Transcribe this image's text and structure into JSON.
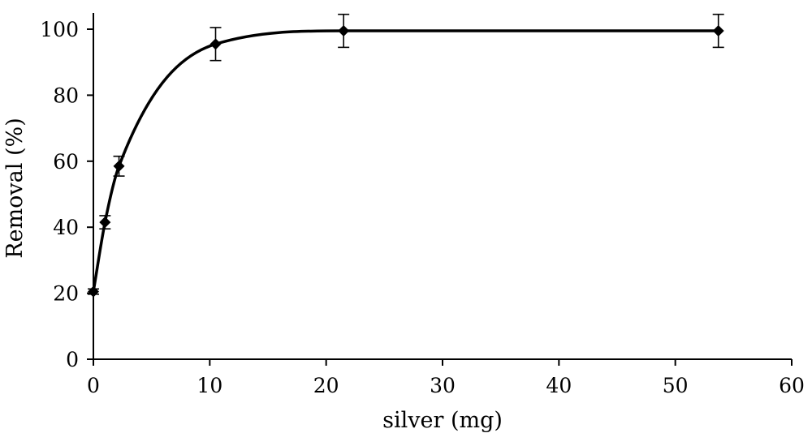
{
  "chart_data": {
    "type": "line",
    "title": "",
    "xlabel": "silver (mg)",
    "ylabel": "Removal (%)",
    "xlim": [
      0,
      60
    ],
    "ylim": [
      0,
      100
    ],
    "x_ticks": [
      0,
      10,
      20,
      30,
      40,
      50,
      60
    ],
    "y_ticks": [
      0,
      20,
      40,
      60,
      80,
      100
    ],
    "grid": false,
    "legend": "none",
    "line_color": "#000000",
    "marker": "diamond",
    "series": [
      {
        "x": [
          0,
          1,
          2.2,
          10.5,
          21.5,
          53.7
        ],
        "y": [
          20.5,
          41.5,
          58.5,
          95.5,
          99.5,
          99.5
        ],
        "error": [
          0.8,
          2,
          3,
          5,
          5,
          5
        ]
      }
    ]
  }
}
